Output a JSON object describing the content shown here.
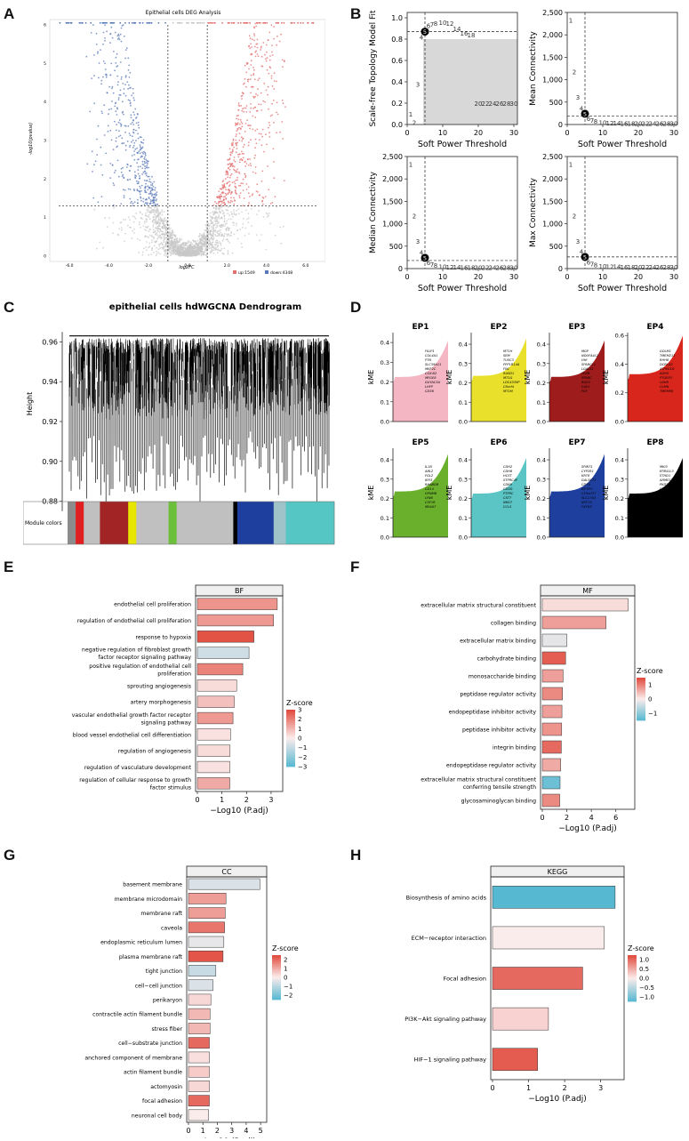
{
  "panel_labels": {
    "a": "A",
    "b": "B",
    "c": "C",
    "d": "D",
    "e": "E",
    "f": "F",
    "g": "G",
    "h": "H"
  },
  "colors": {
    "up": "#e36f6f",
    "down": "#5a78b8",
    "ns": "#c8c8c8",
    "z_high": "#e0483a",
    "z_mid": "#fbecec",
    "z_low": "#56b8d1",
    "bar_edge": "#333333"
  },
  "chart_data": [
    {
      "id": "A",
      "type": "scatter",
      "title": "Epithelial cells DEG Analysis",
      "xlabel": "log2FC",
      "ylabel": "-log10(pvalue)",
      "xlim": [
        -7,
        7
      ],
      "ylim": [
        0,
        6
      ],
      "xticks": [
        "-6.0",
        "-4.0",
        "-2.0",
        "0.0",
        "2.0",
        "4.0",
        "6.0"
      ],
      "xtick_values": [
        -6,
        -4,
        -2,
        0,
        2,
        4,
        6
      ],
      "yticks": [
        "0",
        "1",
        "2",
        "3",
        "4",
        "5",
        "6"
      ],
      "fc_threshold": 1,
      "p_threshold": 1.3,
      "legend": [
        {
          "name": "up:1549",
          "color_key": "up"
        },
        {
          "name": "down:4348",
          "color_key": "down"
        }
      ]
    },
    {
      "id": "B",
      "type": "line",
      "subplots": [
        {
          "ylabel": "Scale-free Topology Model Fit",
          "xlabel": "Soft Power Threshold",
          "xlim": [
            0,
            31
          ],
          "ylim": [
            0,
            1.05
          ],
          "yticks": [
            "0.0",
            "0.2",
            "0.4",
            "0.6",
            "0.8",
            "1.0"
          ],
          "ytick_values": [
            0,
            0.2,
            0.4,
            0.6,
            0.8,
            1.0
          ],
          "xticks": [
            "0",
            "10",
            "20",
            "30"
          ],
          "hline": 0.87,
          "vline": 5,
          "shaded_below": 0.8,
          "powers": [
            "1",
            "2",
            "3",
            "4",
            "5",
            "6",
            "7",
            "8",
            "10",
            "12",
            "14",
            "16",
            "18",
            "20",
            "22",
            "24",
            "26",
            "28",
            "30"
          ],
          "values": [
            0.1,
            0.02,
            0.38,
            0.82,
            0.87,
            0.93,
            0.94,
            0.95,
            0.96,
            0.95,
            0.9,
            0.86,
            0.84,
            0.2,
            0.2,
            0.2,
            0.2,
            0.2,
            0.2
          ]
        },
        {
          "ylabel": "Mean Connectivity",
          "xlabel": "Soft Power Threshold",
          "xlim": [
            0,
            31
          ],
          "ylim": [
            0,
            2500
          ],
          "yticks": [
            "0",
            "500",
            "1,000",
            "1,500",
            "2,000",
            "2,500"
          ],
          "ytick_values": [
            0,
            500,
            1000,
            1500,
            2000,
            2500
          ],
          "xticks": [
            "0",
            "10",
            "20",
            "30"
          ],
          "hline": 190,
          "vline": 5,
          "powers": [
            "1",
            "2",
            "3",
            "4",
            "5",
            "6",
            "7",
            "8",
            "10",
            "12",
            "14",
            "16",
            "18",
            "20",
            "22",
            "24",
            "26",
            "28",
            "30"
          ],
          "values": [
            2330,
            1180,
            620,
            370,
            240,
            140,
            100,
            80,
            50,
            40,
            35,
            30,
            30,
            30,
            30,
            30,
            30,
            30,
            30
          ]
        },
        {
          "ylabel": "Median Connectivity",
          "xlabel": "Soft Power Threshold",
          "xlim": [
            0,
            31
          ],
          "ylim": [
            0,
            2500
          ],
          "yticks": [
            "0",
            "500",
            "1,000",
            "1,500",
            "2,000",
            "2,500"
          ],
          "ytick_values": [
            0,
            500,
            1000,
            1500,
            2000,
            2500
          ],
          "xticks": [
            "0",
            "10",
            "20",
            "30"
          ],
          "hline": 180,
          "vline": 5,
          "powers": [
            "1",
            "2",
            "3",
            "4",
            "5",
            "6",
            "7",
            "8",
            "10",
            "12",
            "14",
            "16",
            "18",
            "20",
            "22",
            "24",
            "26",
            "28",
            "30"
          ],
          "values": [
            2330,
            1180,
            620,
            370,
            240,
            140,
            100,
            80,
            50,
            40,
            35,
            30,
            30,
            30,
            30,
            30,
            30,
            30,
            30
          ]
        },
        {
          "ylabel": "Max Connectivity",
          "xlabel": "Soft Power Threshold",
          "xlim": [
            0,
            31
          ],
          "ylim": [
            0,
            2500
          ],
          "yticks": [
            "0",
            "500",
            "1,000",
            "1,500",
            "2,000",
            "2,500"
          ],
          "ytick_values": [
            0,
            500,
            1000,
            1500,
            2000,
            2500
          ],
          "xticks": [
            "0",
            "10",
            "20",
            "30"
          ],
          "hline": 260,
          "vline": 5,
          "powers": [
            "1",
            "2",
            "3",
            "4",
            "5",
            "6",
            "7",
            "8",
            "10",
            "12",
            "14",
            "16",
            "18",
            "20",
            "22",
            "24",
            "26",
            "28",
            "30"
          ],
          "values": [
            2330,
            1180,
            620,
            390,
            260,
            150,
            110,
            90,
            60,
            50,
            45,
            40,
            40,
            40,
            40,
            40,
            40,
            40,
            40
          ]
        }
      ]
    },
    {
      "id": "C",
      "type": "dendrogram",
      "title": "epithelial cells hdWGCNA Dendrogram",
      "ylabel": "Height",
      "ylim": [
        0.87,
        0.97
      ],
      "yticks": [
        "0.88",
        "0.90",
        "0.92",
        "0.94",
        "0.96"
      ],
      "ytick_values": [
        0.88,
        0.9,
        0.92,
        0.94,
        0.96
      ],
      "color_bar_label": "Module colors",
      "module_segments": [
        {
          "color": "#8c8c8c",
          "weight": 2
        },
        {
          "color": "#e02020",
          "weight": 2
        },
        {
          "color": "#c0c0c0",
          "weight": 4
        },
        {
          "color": "#a32424",
          "weight": 7
        },
        {
          "color": "#e6e600",
          "weight": 2
        },
        {
          "color": "#c0c0c0",
          "weight": 8
        },
        {
          "color": "#6cbf3a",
          "weight": 2
        },
        {
          "color": "#c0c0c0",
          "weight": 14
        },
        {
          "color": "#000000",
          "weight": 1
        },
        {
          "color": "#1f3f9f",
          "weight": 9
        },
        {
          "color": "#9fc3c8",
          "weight": 3
        },
        {
          "color": "#55c6c3",
          "weight": 12
        }
      ]
    },
    {
      "id": "D",
      "type": "area",
      "ylabel": "kME",
      "modules": [
        {
          "name": "EP1",
          "color": "#f4b6c2",
          "ymax": 0.45,
          "yticks": [
            "0.0",
            "0.1",
            "0.2",
            "0.3",
            "0.4"
          ],
          "ytick_values": [
            0,
            0.1,
            0.2,
            0.3,
            0.4
          ],
          "top": 0.41,
          "genes": [
            "FILIP1",
            "COL4A1",
            "PTN",
            "SLC39A11",
            "MEF2C",
            "COX4I2",
            "MFGE8",
            "GUYAC3A",
            "LHFP",
            "CD36"
          ]
        },
        {
          "name": "EP2",
          "color": "#e8e02a",
          "ymax": 0.46,
          "yticks": [
            "0.0",
            "0.1",
            "0.2",
            "0.3",
            "0.4"
          ],
          "ytick_values": [
            0,
            0.1,
            0.2,
            0.3,
            0.4
          ],
          "top": 0.43,
          "genes": [
            "MT1H",
            "SEM",
            "TUSC3",
            "PPP1R14A",
            "FN1",
            "RASD1",
            "MT1G",
            "LOC4339P",
            "C6orf4",
            "MT1M"
          ]
        },
        {
          "name": "EP3",
          "color": "#9e1c1c",
          "ymax": 0.46,
          "yticks": [
            "0.0",
            "0.1",
            "0.2",
            "0.3",
            "0.4"
          ],
          "ytick_values": [
            0,
            0.1,
            0.2,
            0.3,
            0.4
          ],
          "top": 0.42,
          "genes": [
            "MGP",
            "NDUFA4L2",
            "HHI",
            "SPARCL1",
            "LGALS1",
            "FRZB",
            "SPARC",
            "RGS5",
            "CAV1",
            "PGF"
          ]
        },
        {
          "name": "EP4",
          "color": "#d9261c",
          "ymax": 0.62,
          "yticks": [
            "0.0",
            "0.2",
            "0.4",
            "0.6"
          ],
          "ytick_values": [
            0,
            0.2,
            0.4,
            0.6
          ],
          "top": 0.6,
          "genes": [
            "GOLM1",
            "TMEM213",
            "RHH6",
            "DCBLD2",
            "ATP6V1D",
            "ADH5",
            "PTGER3",
            "LDHB",
            "CLMN",
            "TMEM98"
          ]
        },
        {
          "name": "EP5",
          "color": "#6ab02c",
          "ymax": 0.46,
          "yticks": [
            "0.0",
            "0.1",
            "0.2",
            "0.3",
            "0.4"
          ],
          "ytick_values": [
            0,
            0.1,
            0.2,
            0.3,
            0.4
          ],
          "top": 0.43,
          "genes": [
            "IL1B",
            "ABL2",
            "FGL2",
            "IER3",
            "RHABDR",
            "CD14",
            "GPNMB",
            "LYN6",
            "C5F1R",
            "MS4A7"
          ]
        },
        {
          "name": "EP6",
          "color": "#5bc4c4",
          "ymax": 0.46,
          "yticks": [
            "0.0",
            "0.1",
            "0.2",
            "0.3",
            "0.4"
          ],
          "ytick_values": [
            0,
            0.1,
            0.2,
            0.3,
            0.4
          ],
          "top": 0.41,
          "genes": [
            "CDH2",
            "CDH6",
            "HCST",
            "STPRC4P",
            "CD69",
            "CD3D",
            "PTPRC",
            "CST7",
            "NKG7",
            "CCL5"
          ]
        },
        {
          "name": "EP7",
          "color": "#1f3f9f",
          "ymax": 0.46,
          "yticks": [
            "0.0",
            "0.1",
            "0.2",
            "0.3",
            "0.4"
          ],
          "ytick_values": [
            0,
            0.1,
            0.2,
            0.3,
            0.4
          ],
          "top": 0.43,
          "genes": [
            "SPINT1",
            "CYP2R1",
            "KRT8",
            "GALSCT1",
            "CD70",
            "KIF5P3",
            "C19orf77",
            "SLC17A3",
            "KRT19",
            "FXYD2"
          ]
        },
        {
          "name": "EP8",
          "color": "#000000",
          "ymax": 0.46,
          "yticks": [
            "0.0",
            "0.1",
            "0.2",
            "0.3",
            "0.4"
          ],
          "ytick_values": [
            0,
            0.1,
            0.2,
            0.3,
            0.4
          ],
          "top": 0.41,
          "genes": [
            "MKI3",
            "EPB41L3",
            "STHD1",
            "ARMS12",
            "PKD21",
            "GDPR",
            "GSTM4",
            "SLC35B3",
            "DCPS226",
            "PPARGB"
          ]
        }
      ]
    },
    {
      "id": "E",
      "type": "bar",
      "orientation": "horizontal",
      "title": "BF",
      "xlabel": "−Log10 (P.adj)",
      "xlim": [
        0,
        3.4
      ],
      "xticks": [
        "0",
        "1",
        "2",
        "3"
      ],
      "xtick_values": [
        0,
        1,
        2,
        3
      ],
      "legend_title": "Z-score",
      "legend_ticks": [
        "3",
        "2",
        "1",
        "0",
        "−1",
        "−2",
        "−3"
      ],
      "zlim": [
        -3,
        3
      ],
      "categories": [
        "endothelial cell proliferation",
        "regulation of endothelial cell proliferation",
        "response to hypoxia",
        "negative regulation of fibroblast growth factor receptor signaling pathway",
        "positive regulation of endothelial cell proliferation",
        "sprouting angiogenesis",
        "artery morphogenesis",
        "vascular endothelial growth factor receptor signaling pathway",
        "blood vessel endothelial cell differentiation",
        "regulation of angiogenesis",
        "regulation of vasculature development",
        "regulation of cellular response to growth factor stimulus"
      ],
      "values": [
        3.25,
        3.1,
        2.3,
        2.1,
        1.85,
        1.6,
        1.5,
        1.45,
        1.35,
        1.33,
        1.32,
        1.32
      ],
      "zscores": [
        1.6,
        1.5,
        2.8,
        -0.8,
        1.9,
        0.3,
        0.8,
        1.5,
        0.2,
        0.3,
        0.2,
        1.2
      ]
    },
    {
      "id": "F",
      "type": "bar",
      "orientation": "horizontal",
      "title": "MF",
      "xlabel": "−Log10 (P.adj)",
      "xlim": [
        0,
        7.4
      ],
      "xticks": [
        "0",
        "2",
        "4",
        "6"
      ],
      "xtick_values": [
        0,
        2,
        4,
        6
      ],
      "legend_title": "Z-score",
      "legend_ticks": [
        "1",
        "0",
        "−1"
      ],
      "zlim": [
        -1.5,
        1.5
      ],
      "categories": [
        "extracellular matrix structural constituent",
        "collagen binding",
        "extracellular matrix binding",
        "carbohydrate binding",
        "monosaccharide binding",
        "peptidase regulator activity",
        "endopeptidase inhibitor activity",
        "peptidase inhibitor activity",
        "integrin binding",
        "endopeptidase regulator activity",
        "extracellular matrix structural constituent conferring tensile strength",
        "glycosaminoglycan binding"
      ],
      "values": [
        7.0,
        5.2,
        2.0,
        1.9,
        1.7,
        1.65,
        1.6,
        1.58,
        1.55,
        1.5,
        1.45,
        1.42
      ],
      "zscores": [
        0.15,
        0.7,
        -0.2,
        1.3,
        0.7,
        0.9,
        0.7,
        0.8,
        1.2,
        0.6,
        -1.3,
        0.9
      ]
    },
    {
      "id": "G",
      "type": "bar",
      "orientation": "horizontal",
      "title": "CC",
      "xlabel": "−Log10 (P.adj)",
      "xlim": [
        0,
        5.3
      ],
      "xticks": [
        "0",
        "1",
        "2",
        "3",
        "4",
        "5"
      ],
      "xtick_values": [
        0,
        1,
        2,
        3,
        4,
        5
      ],
      "legend_title": "Z-score",
      "legend_ticks": [
        "2",
        "1",
        "0",
        "−1",
        "−2"
      ],
      "zlim": [
        -2.5,
        2.5
      ],
      "categories": [
        "basement membrane",
        "membrane microdomain",
        "membrane raft",
        "caveola",
        "endoplasmic reticulum lumen",
        "plasma membrane raft",
        "tight junction",
        "cell−cell junction",
        "perikaryon",
        "contractile actin filament bundle",
        "stress fiber",
        "cell−substrate junction",
        "anchored component of membrane",
        "actin filament bundle",
        "actomyosin",
        "focal adhesion",
        "neuronal cell body"
      ],
      "values": [
        4.95,
        2.6,
        2.55,
        2.5,
        2.45,
        2.4,
        1.9,
        1.7,
        1.55,
        1.5,
        1.5,
        1.45,
        1.45,
        1.45,
        1.45,
        1.45,
        1.4
      ],
      "zscores": [
        -0.5,
        1.2,
        1.2,
        1.8,
        -0.3,
        2.3,
        -0.8,
        -0.5,
        0.3,
        0.8,
        0.8,
        2.0,
        0.2,
        0.5,
        0.3,
        2.0,
        0.0
      ]
    },
    {
      "id": "H",
      "type": "bar",
      "orientation": "horizontal",
      "title": "KEGG",
      "xlabel": "−Log10 (P.adj)",
      "xlim": [
        0,
        3.6
      ],
      "xticks": [
        "0",
        "1",
        "2",
        "3"
      ],
      "xtick_values": [
        0,
        1,
        2,
        3
      ],
      "legend_title": "Z-score",
      "legend_ticks": [
        "1.0",
        "0.5",
        "0.0",
        "−0.5",
        "−1.0"
      ],
      "zlim": [
        -1.25,
        1.25
      ],
      "categories": [
        "Biosynthesis of amino acids",
        "ECM−receptor interaction",
        "Focal adhesion",
        "PI3K−Akt signaling pathway",
        "HIF−1 signaling pathway"
      ],
      "values": [
        3.4,
        3.1,
        2.5,
        1.55,
        1.25
      ],
      "zscores": [
        -1.25,
        0.0,
        1.0,
        0.2,
        1.1
      ]
    }
  ]
}
